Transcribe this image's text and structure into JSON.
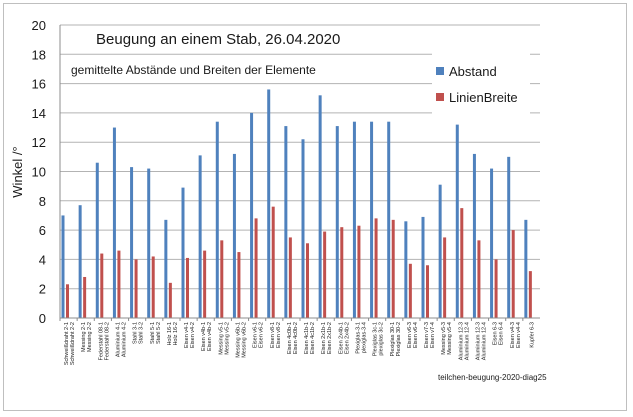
{
  "chart_data": {
    "type": "bar",
    "title": "Beugung an einem Stab, 26.04.2020",
    "subtitle": "gemittelte Abstände und Breiten der Elemente",
    "ylabel": "Winkel /°",
    "xlabel": "",
    "ylim": [
      0,
      20
    ],
    "yticks": [
      0,
      2,
      4,
      6,
      8,
      10,
      12,
      14,
      16,
      18,
      20
    ],
    "grid": "horizontal",
    "legend_position": "top-right",
    "footnote": "teilchen-beugung-2020-diag25",
    "categories": [
      "Schweißdraht 2-1\nSchweißdraht 2-2",
      "Messing 2-1\nMessing 2-2",
      "Federstahl 08-1\nFederstahl 08-2",
      "Aluminium 4-1\nAluminium 4-2",
      "Stahl 3-1\nStahl 3-2",
      "Stahl 5-1\nStahl 5-2",
      "Holz 16-1\nHolz 16-2",
      "Eisen v4-1\nEisen v4-2",
      "Eisen v4b-1\nEisen v4b-2",
      "Messing v5-1\nMessing v5-2",
      "Messing v6b-1\nMessing v6b-2",
      "Eisen v6-1\nEisen v6-2",
      "Eisen v8-1\nEisen v8-2",
      "Eisen 4c0b-1\nEisen 4c0b-2",
      "Eisen 4c1b-1\nEisen 4c1b-2",
      "Eisen 2x1b-1\nEisen 2x1b-2",
      "Eisen 2x4b-1\nEisen 2x4b-2",
      "Plexiglas-3-1\nplexiglas-3-4",
      "Plexiglas 3c-1\nplexiglas 3c-2",
      "Plexiglas 30-1\nPlexiglas 30-2",
      "Eisen v6-3\nEisen v6-4",
      "Eisen v7-3\nEisen v7-4",
      "Messing v5-3\nMessing v5-4",
      "Aluminium 12-3\nAluminium 12-4",
      "Aluminium 12-3\nAluminium 12-4",
      "Eisen 6-3\nEisen 6-4",
      "Eisen v4-3\nEisen v4-4",
      "Kupfer 6-3"
    ],
    "series": [
      {
        "name": "Abstand",
        "color": "#4f81bd",
        "values": [
          7.0,
          7.7,
          10.6,
          13.0,
          10.3,
          10.2,
          6.7,
          8.9,
          11.1,
          13.4,
          11.2,
          14.0,
          15.6,
          13.1,
          12.2,
          15.2,
          13.1,
          13.4,
          13.4,
          13.4,
          6.6,
          6.9,
          9.1,
          13.2,
          11.2,
          10.2,
          11.0,
          6.7
        ]
      },
      {
        "name": "LinienBreite",
        "color": "#c0504d",
        "values": [
          2.3,
          2.8,
          4.4,
          4.6,
          4.0,
          4.2,
          2.4,
          4.1,
          4.6,
          5.3,
          4.5,
          6.8,
          7.6,
          5.5,
          5.1,
          5.9,
          6.2,
          6.3,
          6.8,
          6.7,
          3.7,
          3.6,
          5.5,
          7.5,
          5.3,
          4.0,
          6.0,
          3.2
        ]
      }
    ]
  }
}
